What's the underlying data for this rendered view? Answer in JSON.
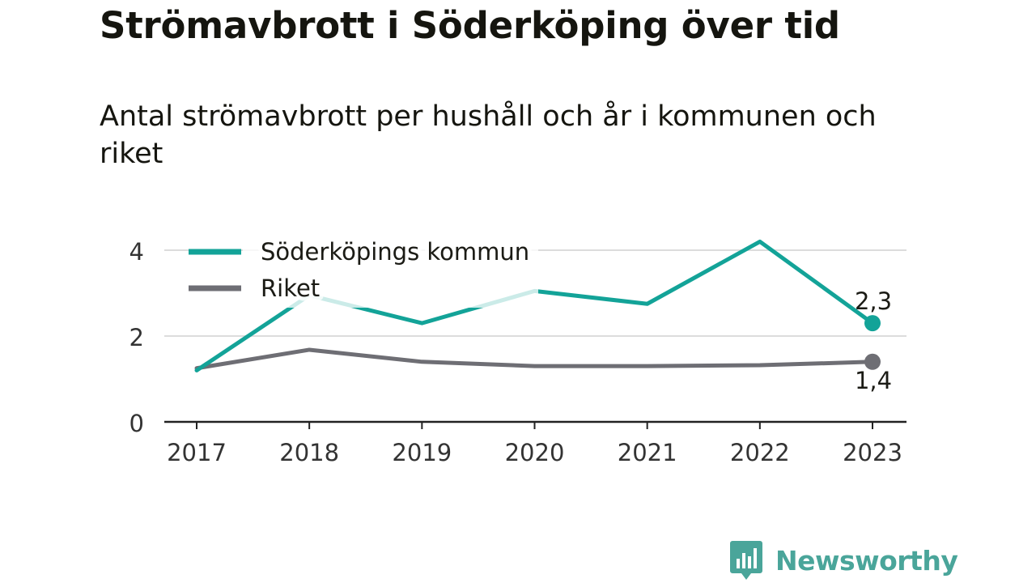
{
  "header": {
    "title": "Strömavbrott i Söderköping över tid",
    "subtitle": "Antal strömavbrott per hushåll och år i kommunen och riket"
  },
  "chart_data": {
    "type": "line",
    "title": "Strömavbrott i Söderköping över tid",
    "subtitle": "Antal strömavbrott per hushåll och år i kommunen och riket",
    "xlabel": "",
    "ylabel": "",
    "x": [
      "2017",
      "2018",
      "2019",
      "2020",
      "2021",
      "2022",
      "2023"
    ],
    "ylim": [
      0,
      4.6
    ],
    "yticks": [
      "0",
      "2",
      "4"
    ],
    "ytick_values": [
      0,
      2,
      4
    ],
    "grid": true,
    "legend_placement": "top-left",
    "series": [
      {
        "name": "Söderköpings kommun",
        "values": [
          1.2,
          2.95,
          2.3,
          3.05,
          2.75,
          4.2,
          2.3
        ],
        "color": "#13a398",
        "end_label": "2,3"
      },
      {
        "name": "Riket",
        "values": [
          1.25,
          1.68,
          1.4,
          1.3,
          1.3,
          1.32,
          1.4
        ],
        "color": "#6e6e74",
        "end_label": "1,4"
      }
    ]
  },
  "brand": {
    "name": "Newsworthy",
    "color": "#4aa59a"
  }
}
